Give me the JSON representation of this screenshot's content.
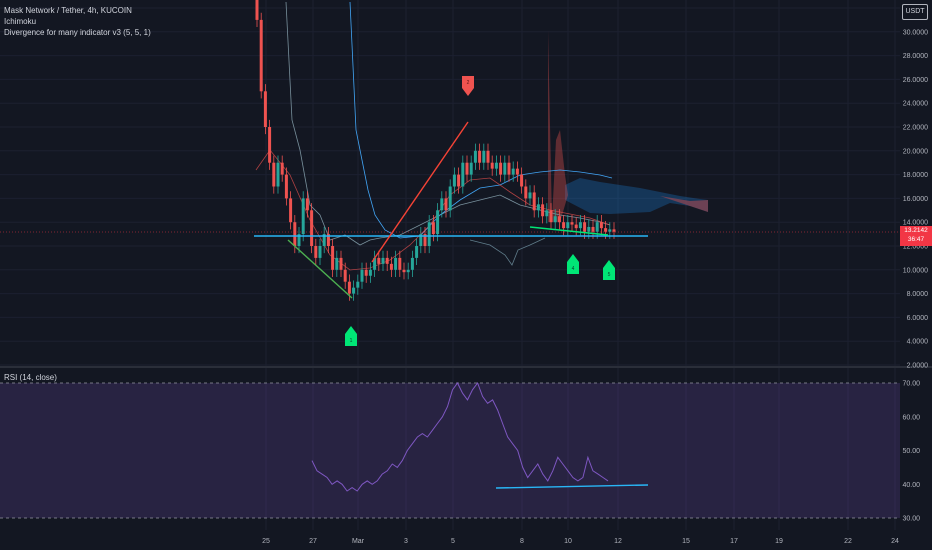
{
  "legend": {
    "symbol_line": "Mask Network / Tether, 4h, KUCOIN",
    "ichimoku": "Ichimoku",
    "divergence": "Divergence for many indicator v3 (5, 5, 1)"
  },
  "currency_badge": "USDT",
  "last_price": {
    "value": "13.2142",
    "countdown": "36:47"
  },
  "rsi_legend": "RSI (14, close)",
  "markers": {
    "m1": "1",
    "m2": "2",
    "m3": "3",
    "m4": "4",
    "m5": "5"
  },
  "colors": {
    "bull": "#26a69a",
    "bear": "#ef5350",
    "rsi": "#7e57c2",
    "rsi_band": "#7e57c2",
    "trend_green": "#4caf50",
    "trend_red": "#f44336",
    "support": "#29b6f6"
  },
  "chart_data": {
    "type": "candlestick",
    "price_axis": {
      "ticks": [
        "2.0000",
        "4.0000",
        "6.0000",
        "8.0000",
        "10.0000",
        "12.0000",
        "14.0000",
        "16.0000",
        "18.0000",
        "20.0000",
        "22.0000",
        "24.0000",
        "26.0000",
        "28.0000",
        "30.0000",
        "32.0000"
      ],
      "ylim": [
        2,
        33
      ]
    },
    "rsi_axis": {
      "ticks": [
        "30.00",
        "40.00",
        "50.00",
        "60.00",
        "70.00"
      ],
      "ylim": [
        28,
        72
      ],
      "overbought": 70,
      "oversold": 30
    },
    "x_ticks": [
      "25",
      "27",
      "Mar",
      "3",
      "5",
      "8",
      "10",
      "12",
      "15",
      "17",
      "19",
      "22",
      "24"
    ],
    "candles_close": [
      31,
      25,
      22,
      19,
      17,
      19,
      18,
      16,
      14,
      12,
      13,
      16,
      15,
      12,
      11,
      12,
      13,
      12,
      10,
      11,
      10,
      9,
      8,
      8.5,
      9,
      10,
      9.5,
      10,
      11,
      10.5,
      11,
      10.5,
      10,
      11,
      10,
      9.8,
      10,
      11,
      12,
      13,
      12,
      14,
      13,
      15,
      16,
      15,
      17,
      18,
      17,
      19,
      18,
      19,
      20,
      19,
      20,
      19,
      18.5,
      19,
      18,
      19,
      18,
      18.5,
      18,
      17,
      16,
      16.5,
      15,
      15.5,
      14.5,
      15,
      14,
      14.5,
      14,
      13.5,
      14,
      13.8,
      13.5,
      14,
      13.2,
      13.6,
      13.2,
      14,
      13.5,
      13.2,
      13.4,
      13.2
    ],
    "rsi_values": [
      47,
      44,
      43,
      42,
      40,
      41,
      40,
      38,
      39,
      38,
      40,
      41,
      40,
      41,
      43,
      44,
      46,
      45,
      47,
      50,
      52,
      54,
      55,
      54,
      56,
      58,
      60,
      63,
      68,
      70,
      67,
      65,
      68,
      70,
      66,
      64,
      65,
      62,
      58,
      54,
      52,
      50,
      45,
      42,
      44,
      46,
      43,
      41,
      44,
      48,
      46,
      44,
      42,
      41,
      42,
      48,
      44,
      43,
      42,
      41
    ],
    "support_level": 12.4,
    "rsi_trend": [
      39.5,
      39.8
    ]
  }
}
